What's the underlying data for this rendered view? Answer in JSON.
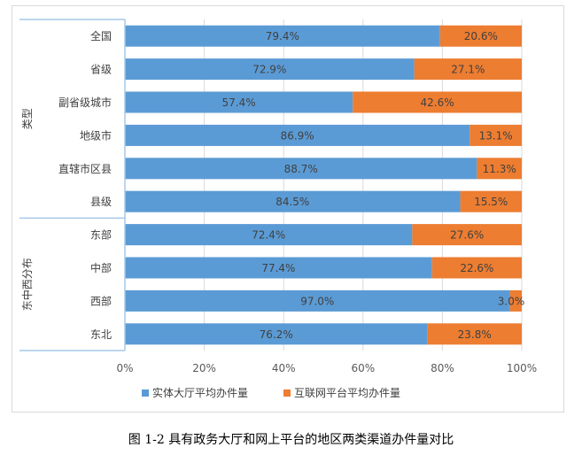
{
  "caption": "图 1-2 具有政务大厅和网上平台的地区两类渠道办件量对比",
  "chart_data": {
    "type": "bar",
    "orientation": "horizontal",
    "stacked": true,
    "percent": true,
    "title": "",
    "groups": [
      {
        "label": "类型",
        "categories": [
          "全国",
          "省级",
          "副省级城市",
          "地级市",
          "直辖市区县",
          "县级"
        ]
      },
      {
        "label": "东中西分布",
        "categories": [
          "东部",
          "中部",
          "西部",
          "东北"
        ]
      }
    ],
    "categories": [
      "全国",
      "省级",
      "副省级城市",
      "地级市",
      "直辖市区县",
      "县级",
      "东部",
      "中部",
      "西部",
      "东北"
    ],
    "series": [
      {
        "name": "实体大厅平均办件量",
        "color": "#5B9BD5",
        "values": [
          79.4,
          72.9,
          57.4,
          86.9,
          88.7,
          84.5,
          72.4,
          77.4,
          97.0,
          76.2
        ],
        "labels": [
          "79.4%",
          "72.9%",
          "57.4%",
          "86.9%",
          "88.7%",
          "84.5%",
          "72.4%",
          "77.4%",
          "97.0%",
          "76.2%"
        ]
      },
      {
        "name": "互联网平台平均办件量",
        "color": "#ED7D31",
        "values": [
          20.6,
          27.1,
          42.6,
          13.1,
          11.3,
          15.5,
          27.6,
          22.6,
          3.0,
          23.8
        ],
        "labels": [
          "20.6%",
          "27.1%",
          "42.6%",
          "13.1%",
          "11.3%",
          "15.5%",
          "27.6%",
          "22.6%",
          "3.0%",
          "23.8%"
        ]
      }
    ],
    "xlim": [
      0,
      100
    ],
    "xticks": [
      "0%",
      "20%",
      "40%",
      "60%",
      "80%",
      "100%"
    ],
    "grid": true,
    "legend_position": "bottom"
  }
}
